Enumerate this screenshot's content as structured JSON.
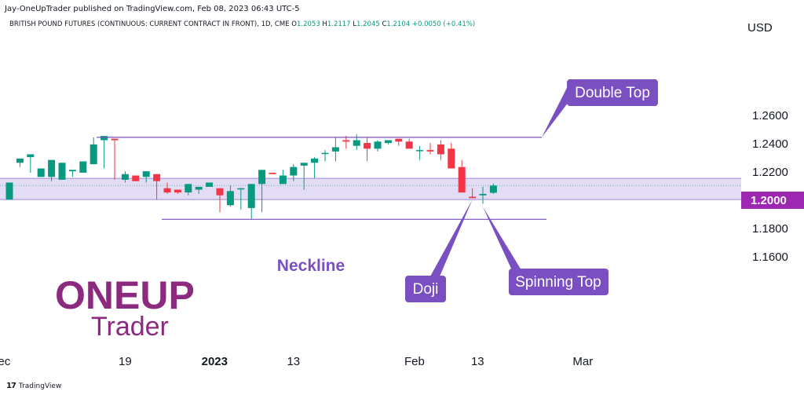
{
  "header": {
    "published": "Jay-OneUpTrader published on TradingView.com, Feb 08, 2023 06:43 UTC-5",
    "symbol": "BRITISH POUND FUTURES (CONTINUOUS: CURRENT CONTRACT IN FRONT), 1D, CME",
    "ohlc": [
      {
        "k": "O",
        "v": "1.2053"
      },
      {
        "k": "H",
        "v": "1.2117"
      },
      {
        "k": "L",
        "v": "1.2045"
      },
      {
        "k": "C",
        "v": "1.2104"
      },
      {
        "k": "",
        "v": "+0.0050 (+0.41%)"
      }
    ]
  },
  "footer": {
    "brand": "TradingView",
    "brand_mark": "17"
  },
  "colors": {
    "up": "#089981",
    "down": "#f23645",
    "annotation": "#7a4fc2",
    "zone": "#ddd6f3",
    "price_tag": "#9c27b0",
    "logo": "#8b2a7e"
  },
  "logo": {
    "line1": "ONEUP",
    "line2": "Trader"
  },
  "chart_data": {
    "type": "candlestick",
    "currency": "USD",
    "y_ticks": [
      1.26,
      1.24,
      1.22,
      1.18,
      1.16
    ],
    "y_tick_labels": [
      "1.2600",
      "1.2400",
      "1.2200",
      "1.1800",
      "1.1600"
    ],
    "price_tag": {
      "value": 1.2,
      "label": "1.2000"
    },
    "x_ticks": [
      {
        "idx": -0.5,
        "label": "ec"
      },
      {
        "idx": 11,
        "label": "19"
      },
      {
        "idx": 19.5,
        "label": "2023"
      },
      {
        "idx": 27,
        "label": "13"
      },
      {
        "idx": 38.5,
        "label": "Feb"
      },
      {
        "idx": 44.5,
        "label": "13"
      },
      {
        "idx": 54.5,
        "label": "Mar"
      }
    ],
    "candles": [
      [
        1.2005,
        1.2125,
        1.2,
        1.2265
      ],
      [
        1.2265,
        1.2295,
        1.2265,
        1.2235
      ],
      [
        1.2305,
        1.2325,
        1.2195,
        1.2195
      ],
      [
        1.2165,
        1.2225,
        1.2025,
        1.2175
      ],
      [
        1.2165,
        1.2285,
        1.2195,
        1.2135
      ],
      [
        1.2145,
        1.2265,
        1.2265,
        1.2175
      ],
      [
        1.2205,
        1.2215,
        1.2155,
        1.2165
      ],
      [
        1.2195,
        1.2275,
        1.2135,
        1.2265
      ],
      [
        1.2255,
        1.2395,
        1.2445,
        1.2265
      ],
      [
        1.2425,
        1.2455,
        1.2395,
        1.2225
      ],
      [
        1.2435,
        1.2425,
        1.2165,
        1.2145
      ],
      [
        1.2145,
        1.2185,
        1.2205,
        1.2125
      ],
      [
        1.2175,
        1.2135,
        1.2155,
        1.2225
      ],
      [
        1.2165,
        1.2205,
        1.2175,
        1.2125
      ],
      [
        1.2185,
        1.2135,
        1.2075,
        1.2005
      ],
      [
        1.2085,
        1.2055,
        1.2125,
        1.2045
      ],
      [
        1.2075,
        1.2055,
        1.2075,
        1.2045
      ],
      [
        1.2055,
        1.2115,
        1.2075,
        1.2035
      ],
      [
        1.2075,
        1.2095,
        1.2045,
        1.2045
      ],
      [
        1.2095,
        1.2125,
        1.2045,
        1.2125
      ],
      [
        1.2085,
        1.2035,
        1.2075,
        1.1915
      ],
      [
        1.1965,
        1.2065,
        1.2105,
        1.1955
      ],
      [
        1.2085,
        1.2085,
        1.1935,
        1.1935
      ],
      [
        1.1945,
        1.2115,
        1.1945,
        1.1865
      ],
      [
        1.2115,
        1.2215,
        1.2115,
        1.1915
      ],
      [
        1.2195,
        1.2185,
        1.2115,
        1.2215
      ],
      [
        1.2115,
        1.2175,
        1.2215,
        1.2115
      ],
      [
        1.2175,
        1.2235,
        1.2255,
        1.2135
      ],
      [
        1.2245,
        1.2265,
        1.2255,
        1.2075
      ],
      [
        1.2265,
        1.2295,
        1.2305,
        1.2155
      ],
      [
        1.2335,
        1.2335,
        1.2355,
        1.2275
      ],
      [
        1.2345,
        1.2375,
        1.2445,
        1.2275
      ],
      [
        1.2425,
        1.2415,
        1.2455,
        1.2365
      ],
      [
        1.2385,
        1.2425,
        1.2465,
        1.2355
      ],
      [
        1.2405,
        1.2365,
        1.2445,
        1.2275
      ],
      [
        1.2365,
        1.2415,
        1.2425,
        1.2345
      ],
      [
        1.2405,
        1.2425,
        1.2425,
        1.2395
      ],
      [
        1.2435,
        1.2415,
        1.2435,
        1.2385
      ],
      [
        1.2415,
        1.2365,
        1.2435,
        1.2375
      ],
      [
        1.2355,
        1.2355,
        1.2385,
        1.2285
      ],
      [
        1.2355,
        1.2345,
        1.2405,
        1.2325
      ],
      [
        1.2395,
        1.2325,
        1.2425,
        1.2285
      ],
      [
        1.2365,
        1.2225,
        1.2405,
        1.2225
      ],
      [
        1.2235,
        1.2055,
        1.2285,
        1.2055
      ],
      [
        1.2025,
        1.2015,
        1.2085,
        1.2045
      ],
      [
        1.2035,
        1.2045,
        1.2095,
        1.1975
      ],
      [
        1.2053,
        1.2104,
        1.2117,
        1.2045
      ]
    ],
    "candle_note": "each candle is [open, close, high, low]",
    "zone": {
      "low": 1.2005,
      "high": 1.2155
    },
    "last_price": 1.2104,
    "double_top_level": 1.2445,
    "neckline_level": 1.1865,
    "annotations": {
      "double_top": "Double Top",
      "neckline": "Neckline",
      "doji": "Doji",
      "spinning_top": "Spinning Top"
    }
  }
}
